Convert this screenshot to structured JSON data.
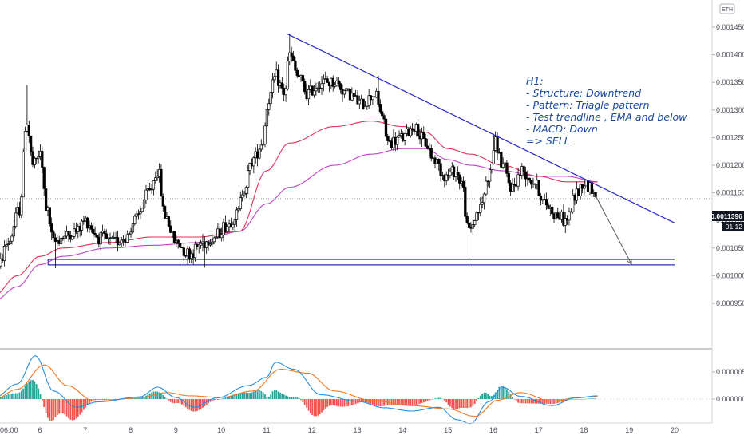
{
  "symbol_badge": "ETH",
  "current_price_label": "0.0011396",
  "countdown_label": "01:12",
  "annotation": {
    "lines": [
      "H1:",
      "- Structure: Downtrend",
      "- Pattern: Triagle pattern",
      "- Test trendline , EMA and below",
      "- MACD: Down",
      "=> SELL"
    ]
  },
  "colors": {
    "candle": "#000000",
    "ema_fast": "#e0305a",
    "ema_slow": "#c040c8",
    "trendline": "#2929c8",
    "support": "#2929c8",
    "arrow": "#555555",
    "note_text": "#1848a0",
    "macd_line": "#2a8fe0",
    "signal_line": "#f07820",
    "hist_pos": "#26a69a",
    "hist_neg": "#ef5350",
    "price_badge_bg": "#131722"
  },
  "chart_data": [
    {
      "type": "candlestick",
      "title": "",
      "x_tick_labels": [
        "06:00",
        "6",
        "7",
        "8",
        "9",
        "10",
        "11",
        "12",
        "13",
        "14",
        "15",
        "16",
        "17",
        "18",
        "19",
        "20"
      ],
      "y_tick_labels": [
        "0.0009500",
        "0.0010000",
        "0.0010500",
        "0.0011000",
        "0.0011500",
        "0.0012000",
        "0.0012500",
        "0.0013000",
        "0.0013500",
        "0.0014000",
        "0.0014500"
      ],
      "ylim": [
        0.000935,
        0.001485
      ],
      "xlim": [
        5.0,
        20.5
      ],
      "trendline": {
        "from": {
          "x": 11.45,
          "y": 0.001438
        },
        "to": {
          "x": 20.0,
          "y": 0.0010955
        }
      },
      "support_zone": [
        0.0010195,
        0.0010295
      ],
      "projection_arrow": {
        "from": {
          "x": 18.25,
          "y": 0.001146
        },
        "to": {
          "x": 19.05,
          "y": 0.001021
        }
      },
      "current_price": 0.0011396,
      "anchors": [
        [
          5.05,
          0.00101
        ],
        [
          5.3,
          0.00106
        ],
        [
          5.55,
          0.00112
        ],
        [
          5.7,
          0.00128
        ],
        [
          5.85,
          0.0012
        ],
        [
          6.0,
          0.00122
        ],
        [
          6.15,
          0.00112
        ],
        [
          6.3,
          0.00106
        ],
        [
          6.5,
          0.00107
        ],
        [
          6.8,
          0.00108
        ],
        [
          7.0,
          0.0011
        ],
        [
          7.3,
          0.00107
        ],
        [
          7.6,
          0.00106
        ],
        [
          7.9,
          0.00107
        ],
        [
          8.1,
          0.0011
        ],
        [
          8.4,
          0.00115
        ],
        [
          8.6,
          0.00119
        ],
        [
          8.75,
          0.00111
        ],
        [
          9.0,
          0.00106
        ],
        [
          9.3,
          0.00104
        ],
        [
          9.6,
          0.00106
        ],
        [
          9.85,
          0.00107
        ],
        [
          10.1,
          0.00109
        ],
        [
          10.35,
          0.00111
        ],
        [
          10.5,
          0.00116
        ],
        [
          10.7,
          0.00121
        ],
        [
          10.9,
          0.00124
        ],
        [
          11.05,
          0.00132
        ],
        [
          11.2,
          0.00136
        ],
        [
          11.4,
          0.00133
        ],
        [
          11.5,
          0.0014
        ],
        [
          11.7,
          0.00136
        ],
        [
          11.9,
          0.00133
        ],
        [
          12.2,
          0.00135
        ],
        [
          12.5,
          0.00135
        ],
        [
          12.8,
          0.00133
        ],
        [
          13.1,
          0.00131
        ],
        [
          13.4,
          0.00133
        ],
        [
          13.5,
          0.0013
        ],
        [
          13.7,
          0.00124
        ],
        [
          14.0,
          0.00125
        ],
        [
          14.25,
          0.00127
        ],
        [
          14.5,
          0.00124
        ],
        [
          14.7,
          0.00121
        ],
        [
          14.95,
          0.00118
        ],
        [
          15.15,
          0.00119
        ],
        [
          15.3,
          0.00117
        ],
        [
          15.45,
          0.00108
        ],
        [
          15.7,
          0.00112
        ],
        [
          15.9,
          0.00118
        ],
        [
          16.05,
          0.00124
        ],
        [
          16.2,
          0.0012
        ],
        [
          16.4,
          0.00116
        ],
        [
          16.65,
          0.00119
        ],
        [
          16.9,
          0.00117
        ],
        [
          17.15,
          0.00113
        ],
        [
          17.4,
          0.00111
        ],
        [
          17.6,
          0.0011
        ],
        [
          17.85,
          0.00115
        ],
        [
          18.0,
          0.00117
        ],
        [
          18.15,
          0.00116
        ],
        [
          18.28,
          0.00114
        ]
      ],
      "ema_fast_anchors": [
        [
          5.0,
          0.000965
        ],
        [
          5.5,
          0.001
        ],
        [
          6.0,
          0.001035
        ],
        [
          6.5,
          0.00105
        ],
        [
          7.5,
          0.00106
        ],
        [
          8.5,
          0.00107
        ],
        [
          9.5,
          0.00107
        ],
        [
          10.4,
          0.00108
        ],
        [
          11.0,
          0.00119
        ],
        [
          11.5,
          0.00124
        ],
        [
          12.5,
          0.00127
        ],
        [
          13.3,
          0.00128
        ],
        [
          14.0,
          0.00127
        ],
        [
          14.5,
          0.00126
        ],
        [
          15.0,
          0.00123
        ],
        [
          15.5,
          0.00122
        ],
        [
          16.2,
          0.0012
        ],
        [
          17.0,
          0.00118
        ],
        [
          17.6,
          0.00117
        ],
        [
          18.3,
          0.00117
        ]
      ],
      "ema_slow_anchors": [
        [
          5.0,
          0.000955
        ],
        [
          5.5,
          0.00098
        ],
        [
          6.0,
          0.00102
        ],
        [
          6.5,
          0.001035
        ],
        [
          7.5,
          0.00105
        ],
        [
          8.5,
          0.001055
        ],
        [
          9.5,
          0.00106
        ],
        [
          10.4,
          0.00108
        ],
        [
          11.0,
          0.00113
        ],
        [
          11.5,
          0.00116
        ],
        [
          12.5,
          0.0012
        ],
        [
          13.3,
          0.00122
        ],
        [
          14.0,
          0.00123
        ],
        [
          14.5,
          0.00123
        ],
        [
          15.0,
          0.00121
        ],
        [
          15.5,
          0.0012
        ],
        [
          16.2,
          0.00119
        ],
        [
          17.0,
          0.00118
        ],
        [
          17.6,
          0.00118
        ],
        [
          18.3,
          0.00117
        ]
      ]
    },
    {
      "type": "macd",
      "y_tick_labels": [
        "0.0000000",
        "0.0000050"
      ],
      "ylim": [
        -6.5e-06,
        8.8e-06
      ],
      "macd_anchors": [
        [
          5.0,
          3e-07
        ],
        [
          5.5,
          2.8e-06
        ],
        [
          5.9,
          8e-06
        ],
        [
          6.3,
          1.5e-06
        ],
        [
          6.8,
          -1.5e-06
        ],
        [
          7.3,
          -5e-07
        ],
        [
          8.2,
          4e-07
        ],
        [
          8.6,
          2.2e-06
        ],
        [
          9.0,
          3e-07
        ],
        [
          9.4,
          -1.5e-06
        ],
        [
          9.9,
          2e-07
        ],
        [
          10.6,
          2.5e-06
        ],
        [
          11.0,
          4e-06
        ],
        [
          11.2,
          6.8e-06
        ],
        [
          11.6,
          5.5e-06
        ],
        [
          12.2,
          8e-07
        ],
        [
          13.0,
          -4e-07
        ],
        [
          13.6,
          -1.6e-06
        ],
        [
          14.2,
          -2.2e-06
        ],
        [
          14.8,
          -1.5e-06
        ],
        [
          15.2,
          -3.8e-06
        ],
        [
          15.5,
          -4.5e-06
        ],
        [
          15.9,
          -5e-07
        ],
        [
          16.2,
          2.2e-06
        ],
        [
          16.6,
          5e-07
        ],
        [
          17.3,
          -1.2e-06
        ],
        [
          17.8,
          2e-07
        ],
        [
          18.3,
          6e-07
        ]
      ],
      "signal_anchors": [
        [
          5.0,
          0.0
        ],
        [
          5.5,
          1.8e-06
        ],
        [
          6.1,
          6.3e-06
        ],
        [
          6.6,
          2.5e-06
        ],
        [
          7.2,
          -4e-07
        ],
        [
          8.2,
          2e-07
        ],
        [
          8.8,
          1.2e-06
        ],
        [
          9.3,
          6e-07
        ],
        [
          10.0,
          3e-07
        ],
        [
          10.7,
          1.5e-06
        ],
        [
          11.3,
          5.5e-06
        ],
        [
          11.9,
          4.8e-06
        ],
        [
          12.5,
          1.5e-06
        ],
        [
          13.3,
          -2e-07
        ],
        [
          14.2,
          -1.2e-06
        ],
        [
          15.0,
          -1.8e-06
        ],
        [
          15.6,
          -3.2e-06
        ],
        [
          16.1,
          -2e-07
        ],
        [
          16.6,
          1.2e-06
        ],
        [
          17.3,
          -4e-07
        ],
        [
          17.9,
          3e-07
        ],
        [
          18.3,
          5e-07
        ]
      ]
    }
  ]
}
